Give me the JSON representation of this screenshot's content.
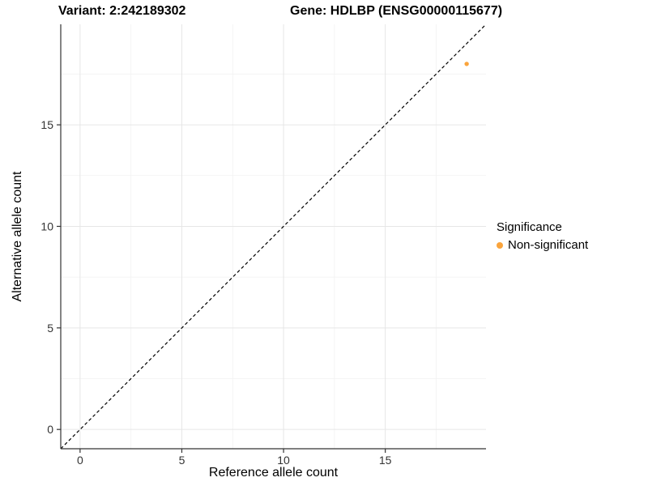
{
  "titles": {
    "variant": "Variant: 2:242189302",
    "gene": "Gene: HDLBP (ENSG00000115677)"
  },
  "chart_data": {
    "type": "scatter",
    "title_left": "Variant: 2:242189302",
    "title_right": "Gene: HDLBP (ENSG00000115677)",
    "xlabel": "Reference allele count",
    "ylabel": "Alternative allele count",
    "xlim": [
      -0.95,
      19.95
    ],
    "ylim": [
      -0.95,
      19.95
    ],
    "x_ticks": [
      0,
      5,
      10,
      15
    ],
    "y_ticks": [
      0,
      5,
      10,
      15
    ],
    "x_minor_ticks": [
      2.5,
      7.5,
      12.5,
      17.5
    ],
    "y_minor_ticks": [
      2.5,
      7.5,
      12.5,
      17.5
    ],
    "grid": "major+minor",
    "legend_position": "right",
    "series": [
      {
        "name": "Non-significant",
        "color": "#FAA43C",
        "points": [
          {
            "x": 19,
            "y": 18
          }
        ]
      }
    ],
    "reference_line": {
      "type": "identity",
      "slope": 1,
      "intercept": 0,
      "style": "dashed",
      "color": "#000000"
    }
  },
  "legend": {
    "title": "Significance",
    "items": [
      {
        "label": "Non-significant",
        "color": "#FAA43C"
      }
    ]
  },
  "colors": {
    "background": "#FFFFFF",
    "grid_major": "#E6E6E6",
    "grid_minor": "#F2F2F2",
    "axis_line": "#333333",
    "tick_label": "#333333",
    "point": "#FAA43C",
    "dashed_line": "#000000"
  }
}
